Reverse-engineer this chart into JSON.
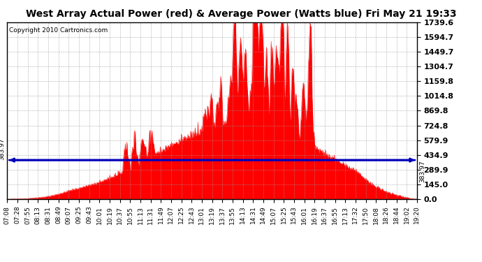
{
  "title": "West Array Actual Power (red) & Average Power (Watts blue) Fri May 21 19:33",
  "copyright": "Copyright 2010 Cartronics.com",
  "avg_power": 383.97,
  "y_max": 1739.6,
  "y_ticks": [
    0.0,
    145.0,
    289.9,
    434.9,
    579.9,
    724.8,
    869.8,
    1014.8,
    1159.8,
    1304.7,
    1449.7,
    1594.7,
    1739.6
  ],
  "background_color": "#ffffff",
  "grid_color": "#999999",
  "fill_color": "#ff0000",
  "avg_line_color": "#0000bb",
  "title_fontsize": 10,
  "copyright_fontsize": 6.5,
  "tick_fontsize": 6.5,
  "ytick_fontsize": 8,
  "x_tick_labels": [
    "07:08",
    "07:28",
    "07:55",
    "08:13",
    "08:31",
    "08:49",
    "09:07",
    "09:25",
    "09:43",
    "10:01",
    "10:19",
    "10:37",
    "10:55",
    "11:13",
    "11:31",
    "11:49",
    "12:07",
    "12:25",
    "12:43",
    "13:01",
    "13:19",
    "13:37",
    "13:55",
    "14:13",
    "14:31",
    "14:49",
    "15:07",
    "15:25",
    "15:43",
    "16:01",
    "16:19",
    "16:37",
    "16:55",
    "17:13",
    "17:32",
    "17:50",
    "18:08",
    "18:26",
    "18:44",
    "19:02",
    "19:20"
  ],
  "n_points": 740,
  "seed": 123
}
